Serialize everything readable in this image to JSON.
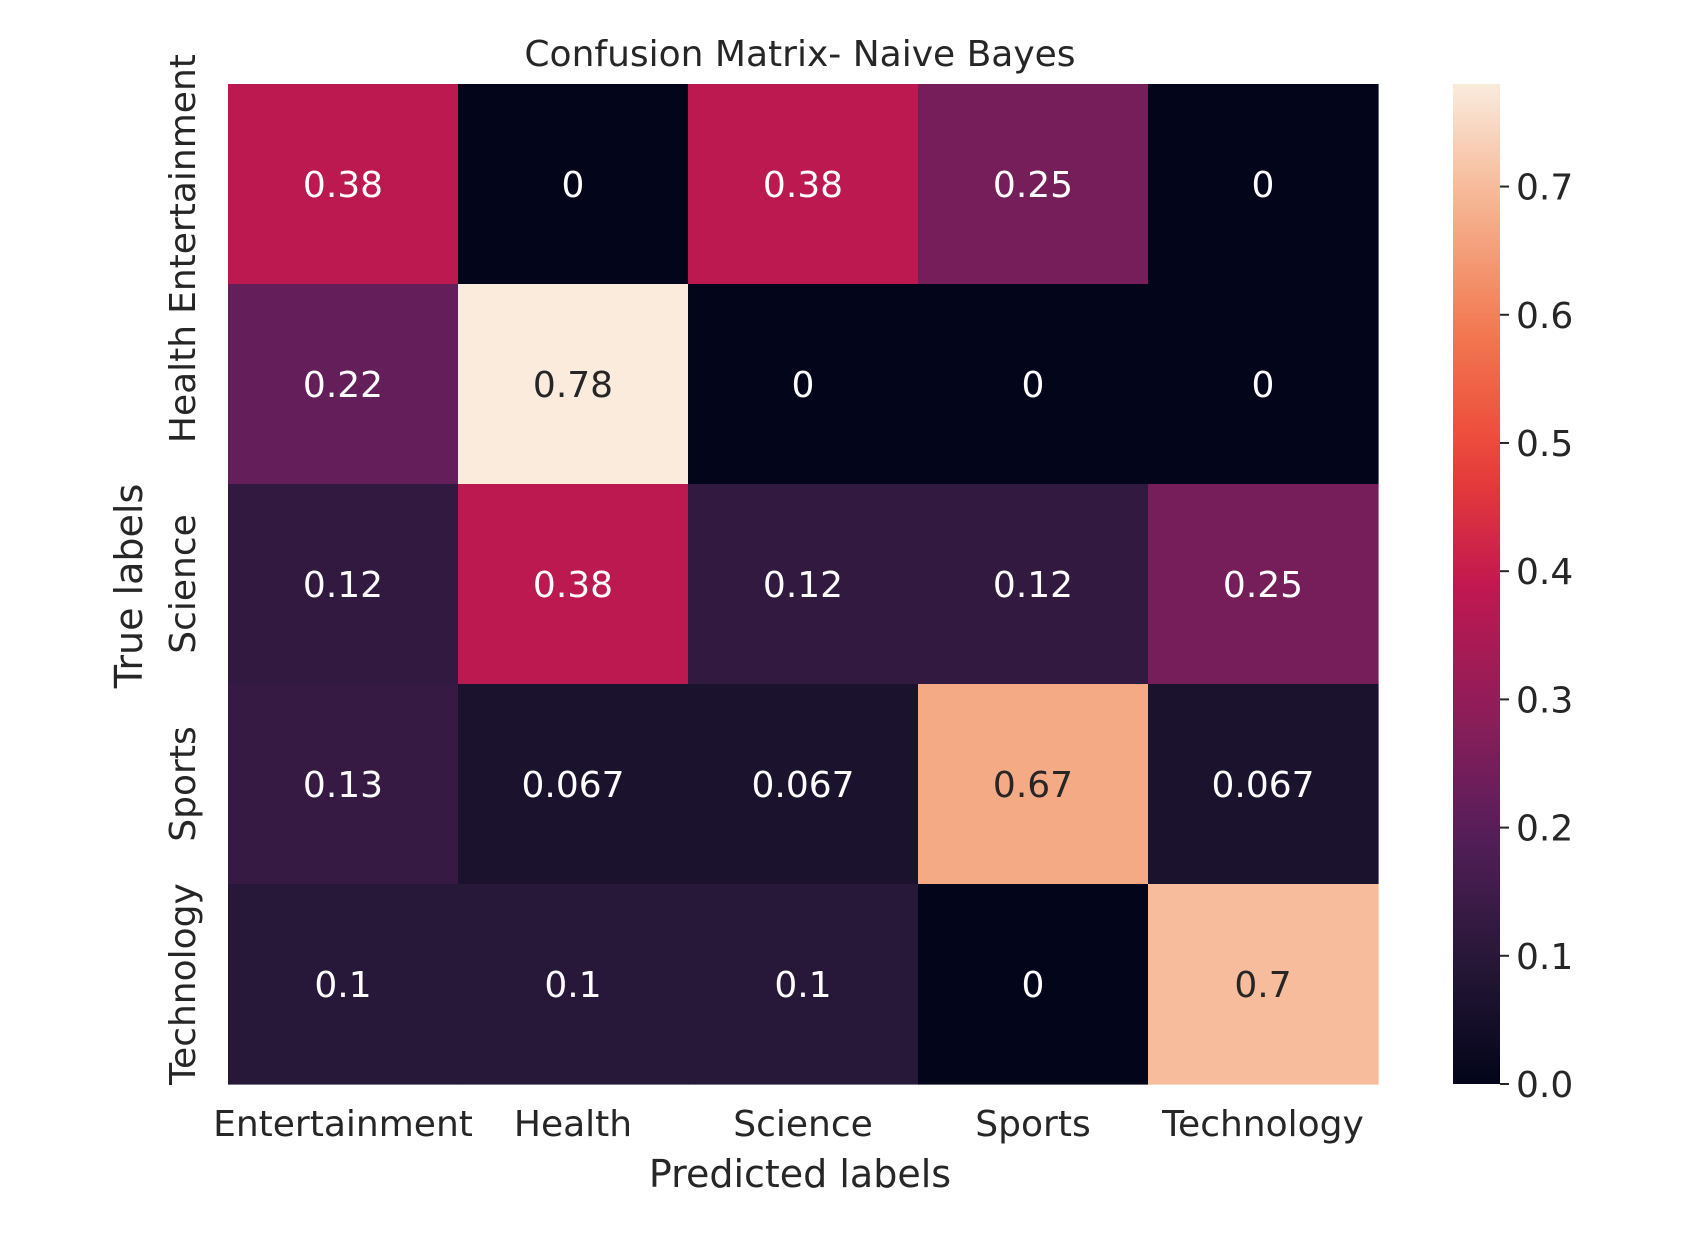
{
  "chart_data": {
    "type": "heatmap",
    "title": "Confusion Matrix- Naive Bayes",
    "xlabel": "Predicted labels",
    "ylabel": "True labels",
    "x_categories": [
      "Entertainment",
      "Health",
      "Science",
      "Sports",
      "Technology"
    ],
    "y_categories": [
      "Entertainment",
      "Health",
      "Science",
      "Sports",
      "Technology"
    ],
    "values": [
      [
        0.38,
        0,
        0.38,
        0.25,
        0
      ],
      [
        0.22,
        0.78,
        0,
        0,
        0
      ],
      [
        0.12,
        0.38,
        0.12,
        0.12,
        0.25
      ],
      [
        0.13,
        0.067,
        0.067,
        0.67,
        0.067
      ],
      [
        0.1,
        0.1,
        0.1,
        0,
        0.7
      ]
    ],
    "cell_labels": [
      [
        "0.38",
        "0",
        "0.38",
        "0.25",
        "0"
      ],
      [
        "0.22",
        "0.78",
        "0",
        "0",
        "0"
      ],
      [
        "0.12",
        "0.38",
        "0.12",
        "0.12",
        "0.25"
      ],
      [
        "0.13",
        "0.067",
        "0.067",
        "0.67",
        "0.067"
      ],
      [
        "0.1",
        "0.1",
        "0.1",
        "0",
        "0.7"
      ]
    ],
    "colorbar": {
      "range": [
        0,
        0.78
      ],
      "ticks": [
        0.0,
        0.1,
        0.2,
        0.3,
        0.4,
        0.5,
        0.6,
        0.7
      ],
      "tick_labels": [
        "0.0",
        "0.1",
        "0.2",
        "0.3",
        "0.4",
        "0.5",
        "0.6",
        "0.7"
      ],
      "colormap": "rocket"
    },
    "grid": false
  }
}
